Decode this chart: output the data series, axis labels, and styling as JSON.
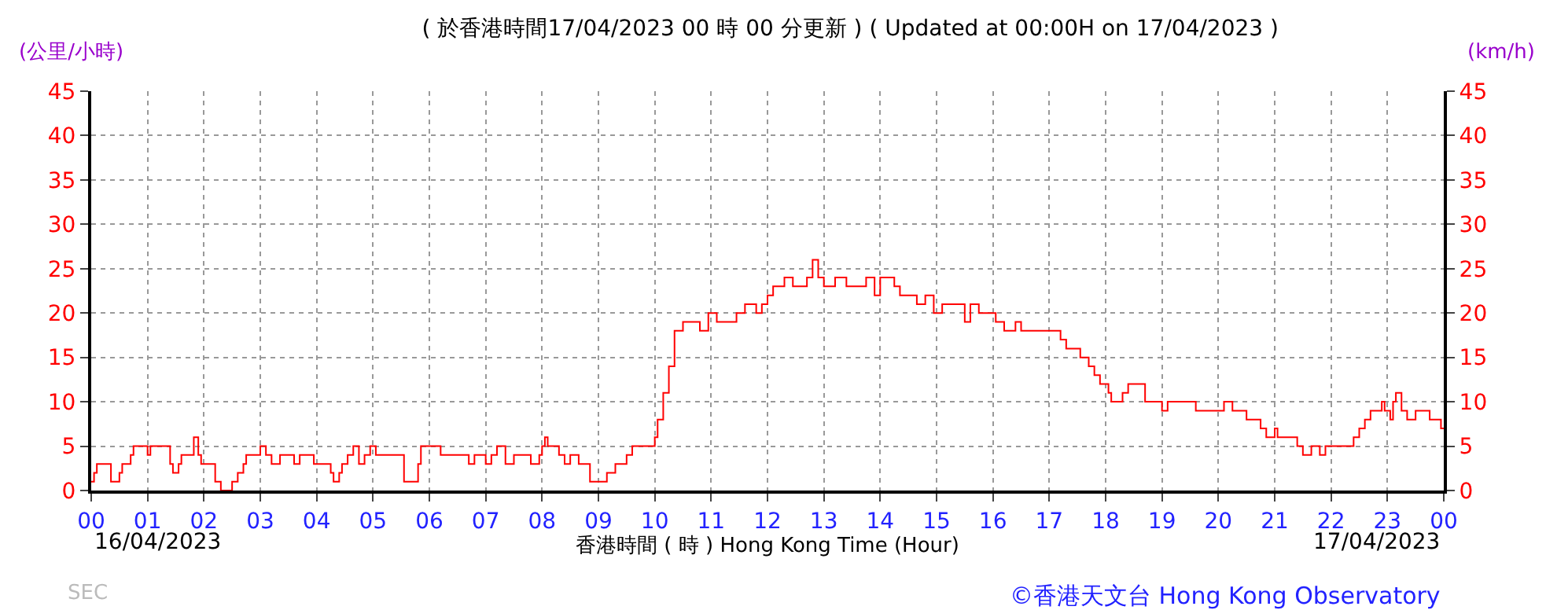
{
  "chart_data": {
    "type": "step",
    "title": "( 於香港時間17/04/2023 00 時 00 分更新 ) ( Updated at 00:00H on 17/04/2023 )",
    "xlabel": "香港時間 ( 時 ) Hong Kong Time (Hour)",
    "ylabel": "(公里/小時)",
    "y2label": "(km/h)",
    "annotations": [
      "16/04/2023",
      "17/04/2023",
      "SEC",
      "©香港天文台 Hong Kong Observatory"
    ],
    "x": [
      0,
      0.05,
      0.1,
      0.35,
      0.45,
      0.5,
      0.55,
      0.65,
      0.7,
      0.75,
      0.95,
      1.0,
      1.05,
      1.25,
      1.4,
      1.45,
      1.55,
      1.6,
      1.75,
      1.82,
      1.9,
      1.95,
      2.1,
      2.2,
      2.3,
      2.45,
      2.5,
      2.6,
      2.7,
      2.75,
      2.95,
      3.0,
      3.1,
      3.2,
      3.35,
      3.6,
      3.7,
      3.95,
      4.25,
      4.3,
      4.4,
      4.45,
      4.55,
      4.65,
      4.75,
      4.85,
      4.95,
      5.05,
      5.5,
      5.55,
      5.7,
      5.8,
      5.85,
      6.1,
      6.2,
      6.65,
      6.7,
      6.8,
      7.0,
      7.1,
      7.2,
      7.35,
      7.5,
      7.7,
      7.8,
      7.95,
      8.0,
      8.05,
      8.1,
      8.3,
      8.4,
      8.5,
      8.65,
      8.85,
      9.1,
      9.15,
      9.3,
      9.5,
      9.6,
      9.9,
      10.0,
      10.05,
      10.15,
      10.25,
      10.35,
      10.5,
      10.7,
      10.8,
      10.95,
      11.1,
      11.45,
      11.6,
      11.8,
      11.9,
      12.0,
      12.1,
      12.3,
      12.45,
      12.7,
      12.8,
      12.9,
      13.0,
      13.2,
      13.4,
      13.75,
      13.9,
      14.0,
      14.25,
      14.35,
      14.65,
      14.8,
      14.95,
      15.1,
      15.5,
      15.6,
      15.75,
      16.05,
      16.2,
      16.4,
      16.5,
      17.2,
      17.3,
      17.55,
      17.7,
      17.8,
      17.9,
      18.05,
      18.1,
      18.3,
      18.4,
      18.7,
      19.0,
      19.1,
      19.6,
      20.1,
      20.25,
      20.5,
      20.75,
      20.85,
      21.0,
      21.05,
      21.4,
      21.5,
      21.65,
      21.8,
      21.9,
      22.4,
      22.5,
      22.6,
      22.7,
      22.9,
      22.95,
      23.05,
      23.1,
      23.15,
      23.25,
      23.35,
      23.5,
      23.75,
      23.95,
      24.0
    ],
    "series": [
      {
        "color": "#ff0000",
        "values": [
          1,
          2,
          3,
          1,
          1,
          2,
          3,
          3,
          4,
          5,
          5,
          4,
          5,
          5,
          3,
          2,
          3,
          4,
          4,
          6,
          4,
          3,
          3,
          1,
          0,
          0,
          1,
          2,
          3,
          4,
          4,
          5,
          4,
          3,
          4,
          3,
          4,
          3,
          2,
          1,
          2,
          3,
          4,
          5,
          3,
          4,
          5,
          4,
          4,
          1,
          1,
          3,
          5,
          5,
          4,
          4,
          3,
          4,
          3,
          4,
          5,
          3,
          4,
          4,
          3,
          4,
          5,
          6,
          5,
          4,
          3,
          4,
          3,
          1,
          1,
          2,
          3,
          4,
          5,
          5,
          6,
          8,
          11,
          14,
          18,
          19,
          19,
          18,
          20,
          19,
          20,
          21,
          20,
          21,
          22,
          23,
          24,
          23,
          24,
          26,
          24,
          23,
          24,
          23,
          24,
          22,
          24,
          23,
          22,
          21,
          22,
          20,
          21,
          19,
          21,
          20,
          19,
          18,
          19,
          18,
          17,
          16,
          15,
          14,
          13,
          12,
          11,
          10,
          11,
          12,
          10,
          9,
          10,
          9,
          10,
          9,
          8,
          7,
          6,
          7,
          6,
          5,
          4,
          5,
          4,
          5,
          6,
          7,
          8,
          9,
          10,
          9,
          8,
          10,
          11,
          9,
          8,
          9,
          8,
          7,
          7
        ]
      }
    ],
    "xlim": [
      0,
      24
    ],
    "xticks": [
      {
        "value": 0,
        "label": "00"
      },
      {
        "value": 1,
        "label": "01"
      },
      {
        "value": 2,
        "label": "02"
      },
      {
        "value": 3,
        "label": "03"
      },
      {
        "value": 4,
        "label": "04"
      },
      {
        "value": 5,
        "label": "05"
      },
      {
        "value": 6,
        "label": "06"
      },
      {
        "value": 7,
        "label": "07"
      },
      {
        "value": 8,
        "label": "08"
      },
      {
        "value": 9,
        "label": "09"
      },
      10,
      11,
      12,
      13,
      14,
      15,
      16,
      17,
      18,
      19,
      20,
      21,
      22,
      23,
      {
        "value": 24,
        "label": "00"
      }
    ],
    "ylim": [
      0,
      45
    ],
    "yticks": [
      0,
      5,
      10,
      15,
      20,
      25,
      30,
      35,
      40,
      45
    ],
    "y2lim": [
      0,
      45
    ],
    "y2ticks": [
      0,
      5,
      10,
      15,
      20,
      25,
      30,
      35,
      40,
      45
    ],
    "grid": true,
    "line_style": "solid",
    "marker": "none"
  }
}
